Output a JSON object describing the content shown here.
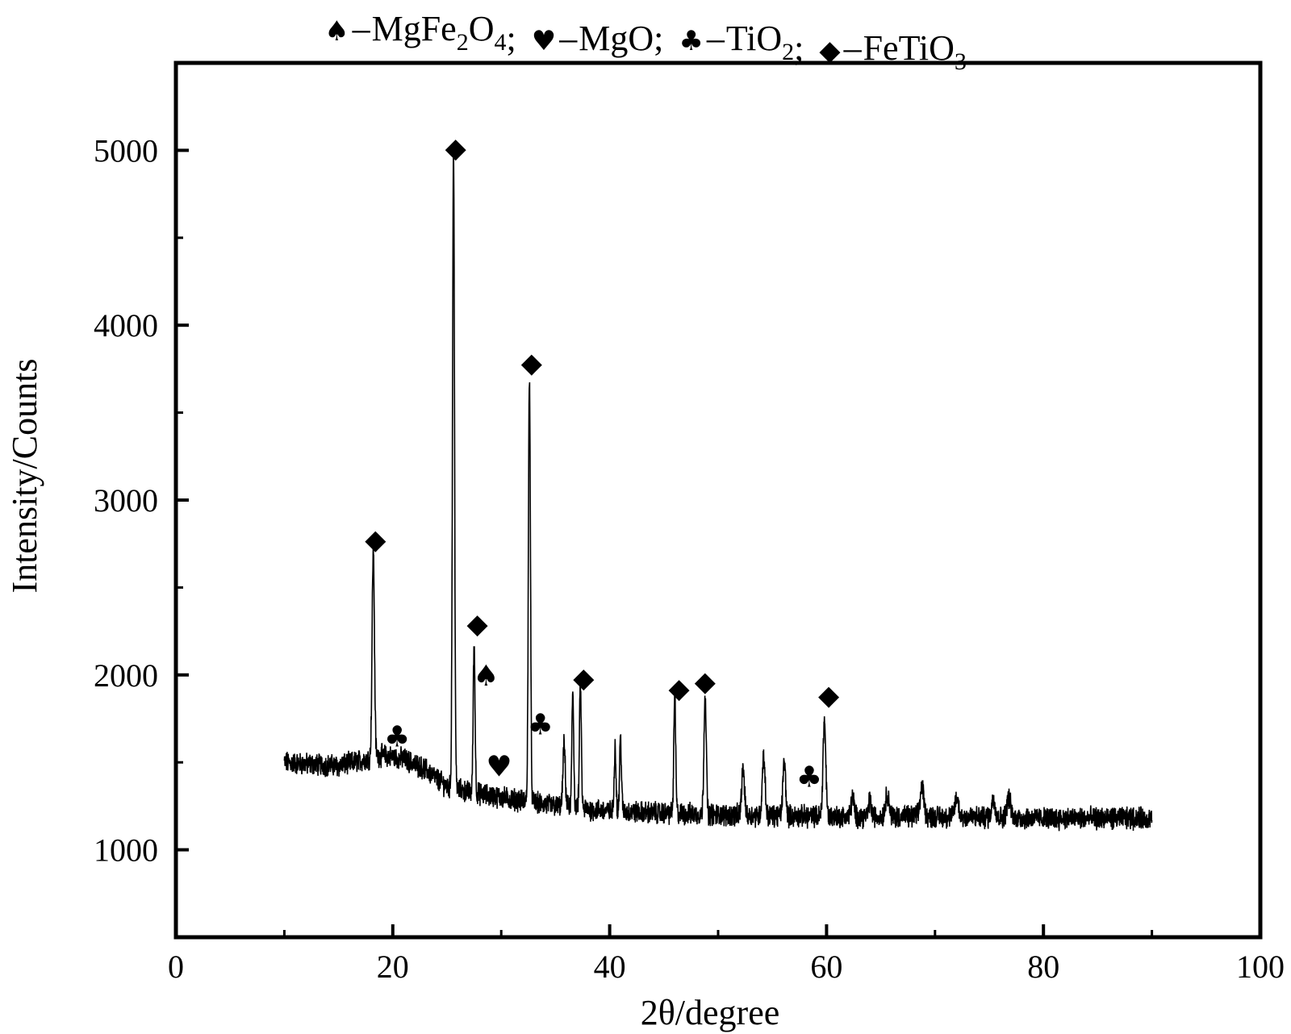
{
  "chart_data": {
    "type": "line",
    "xlabel": "2θ/degree",
    "ylabel": "Intensity/Counts",
    "xlim": [
      0,
      100
    ],
    "ylim": [
      500,
      5500
    ],
    "xticks": [
      0,
      20,
      40,
      60,
      80,
      100
    ],
    "yticks": [
      1000,
      2000,
      3000,
      4000,
      5000
    ],
    "grid": false,
    "legend": {
      "placement": "top",
      "entries": [
        {
          "symbol": "spade",
          "text": "MgFe",
          "sub1": "2",
          "text2": "O",
          "sub2": "4",
          "sep": ";"
        },
        {
          "symbol": "heart",
          "text": "MgO",
          "sep": ";"
        },
        {
          "symbol": "club",
          "text": "TiO",
          "sub1": "2",
          "sep": ";"
        },
        {
          "symbol": "diamond",
          "text": "FeTiO",
          "sub1": "3",
          "sep": ""
        }
      ]
    },
    "baseline": [
      [
        10,
        1500
      ],
      [
        12,
        1490
      ],
      [
        15,
        1480
      ],
      [
        17,
        1510
      ],
      [
        19,
        1540
      ],
      [
        21,
        1520
      ],
      [
        23,
        1460
      ],
      [
        25,
        1360
      ],
      [
        27,
        1330
      ],
      [
        29,
        1310
      ],
      [
        31,
        1290
      ],
      [
        33,
        1270
      ],
      [
        35,
        1250
      ],
      [
        40,
        1220
      ],
      [
        45,
        1210
      ],
      [
        50,
        1200
      ],
      [
        55,
        1195
      ],
      [
        60,
        1190
      ],
      [
        70,
        1190
      ],
      [
        80,
        1180
      ],
      [
        90,
        1180
      ]
    ],
    "peaks": [
      {
        "x": 18.2,
        "y": 2720,
        "width": 0.25
      },
      {
        "x": 25.6,
        "y": 5000,
        "width": 0.22
      },
      {
        "x": 27.5,
        "y": 2180,
        "width": 0.2
      },
      {
        "x": 32.6,
        "y": 3720,
        "width": 0.22
      },
      {
        "x": 35.8,
        "y": 1600,
        "width": 0.25
      },
      {
        "x": 36.6,
        "y": 1900,
        "width": 0.2
      },
      {
        "x": 37.3,
        "y": 1950,
        "width": 0.2
      },
      {
        "x": 40.5,
        "y": 1590,
        "width": 0.2
      },
      {
        "x": 41.0,
        "y": 1640,
        "width": 0.2
      },
      {
        "x": 46.0,
        "y": 1890,
        "width": 0.2
      },
      {
        "x": 48.8,
        "y": 1900,
        "width": 0.25
      },
      {
        "x": 52.3,
        "y": 1460,
        "width": 0.3
      },
      {
        "x": 54.2,
        "y": 1540,
        "width": 0.3
      },
      {
        "x": 56.1,
        "y": 1500,
        "width": 0.3
      },
      {
        "x": 59.8,
        "y": 1740,
        "width": 0.3
      },
      {
        "x": 62.4,
        "y": 1300,
        "width": 0.3
      },
      {
        "x": 64.0,
        "y": 1280,
        "width": 0.3
      },
      {
        "x": 65.6,
        "y": 1320,
        "width": 0.4
      },
      {
        "x": 68.8,
        "y": 1360,
        "width": 0.4
      },
      {
        "x": 72.0,
        "y": 1300,
        "width": 0.4
      },
      {
        "x": 75.4,
        "y": 1290,
        "width": 0.4
      },
      {
        "x": 76.8,
        "y": 1300,
        "width": 0.4
      }
    ],
    "annotations": [
      {
        "symbol": "diamond",
        "x": 18.4,
        "y": 2780
      },
      {
        "symbol": "club",
        "x": 20.4,
        "y": 1650
      },
      {
        "symbol": "diamond",
        "x": 25.8,
        "y": 5020
      },
      {
        "symbol": "diamond",
        "x": 27.8,
        "y": 2300
      },
      {
        "symbol": "spade",
        "x": 28.6,
        "y": 2000
      },
      {
        "symbol": "heart",
        "x": 29.8,
        "y": 1480
      },
      {
        "symbol": "diamond",
        "x": 32.8,
        "y": 3790
      },
      {
        "symbol": "club",
        "x": 33.6,
        "y": 1720
      },
      {
        "symbol": "diamond",
        "x": 37.6,
        "y": 1990
      },
      {
        "symbol": "diamond",
        "x": 46.4,
        "y": 1930
      },
      {
        "symbol": "diamond",
        "x": 48.8,
        "y": 1970
      },
      {
        "symbol": "club",
        "x": 58.4,
        "y": 1420
      },
      {
        "symbol": "diamond",
        "x": 60.2,
        "y": 1890
      }
    ]
  }
}
